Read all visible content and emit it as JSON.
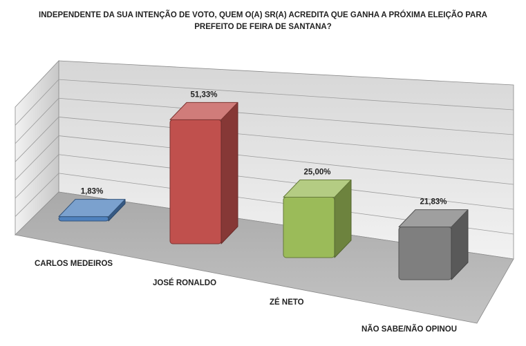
{
  "title_line1": "INDEPENDENTE DA SUA INTENÇÃO DE VOTO, QUEM O(A) SR(A) ACREDITA QUE GANHA A PRÓXIMA ELEIÇÃO PARA",
  "title_line2": "PREFEITO DE FEIRA DE SANTANA?",
  "chart_data": {
    "type": "bar",
    "title": "INDEPENDENTE DA SUA INTENÇÃO DE VOTO, QUEM O(A) SR(A) ACREDITA QUE GANHA A PRÓXIMA ELEIÇÃO PARA PREFEITO DE FEIRA DE SANTANA?",
    "categories": [
      "CARLOS MEDEIROS",
      "JOSÉ RONALDO",
      "ZÉ NETO",
      "NÃO SABE/NÃO OPINOU"
    ],
    "values": [
      1.83,
      51.33,
      25.0,
      21.83
    ],
    "value_labels": [
      "1,83%",
      "51,33%",
      "25,00%",
      "21,83%"
    ],
    "colors": [
      "#4f81bd",
      "#c0504d",
      "#9bbb59",
      "#7f7f7f"
    ],
    "ylim": [
      0,
      100
    ],
    "grid": true,
    "three_d": true,
    "legend": "none"
  }
}
